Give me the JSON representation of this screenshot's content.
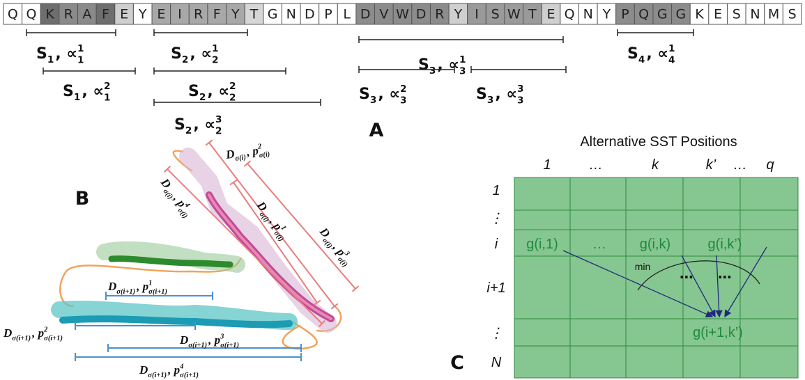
{
  "sequence": {
    "residues": [
      "Q",
      "Q",
      "K",
      "R",
      "A",
      "F",
      "E",
      "Y",
      "E",
      "I",
      "R",
      "F",
      "Y",
      "T",
      "G",
      "N",
      "D",
      "P",
      "L",
      "D",
      "V",
      "W",
      "D",
      "R",
      "Y",
      "I",
      "S",
      "W",
      "T",
      "E",
      "Q",
      "N",
      "Y",
      "P",
      "Q",
      "G",
      "G",
      "K",
      "E",
      "S",
      "N",
      "M",
      "S"
    ],
    "shades": [
      "#ffffff",
      "#ffffff",
      "#6e6e6e",
      "#8a8a8a",
      "#8a8a8a",
      "#6e6e6e",
      "#cfcfcf",
      "#ffffff",
      "#a8a8a8",
      "#a8a8a8",
      "#a8a8a8",
      "#a8a8a8",
      "#a8a8a8",
      "#d6d6d6",
      "#ffffff",
      "#ffffff",
      "#ffffff",
      "#ffffff",
      "#ffffff",
      "#8c8c8c",
      "#8c8c8c",
      "#8c8c8c",
      "#8c8c8c",
      "#8c8c8c",
      "#cfcfcf",
      "#9a9a9a",
      "#9a9a9a",
      "#9a9a9a",
      "#9a9a9a",
      "#cfcfcf",
      "#ffffff",
      "#ffffff",
      "#ffffff",
      "#8c8c8c",
      "#8c8c8c",
      "#8c8c8c",
      "#8c8c8c",
      "#ffffff",
      "#ffffff",
      "#ffffff",
      "#ffffff",
      "#ffffff",
      "#ffffff"
    ]
  },
  "panel_labels": {
    "a": "A",
    "b": "B",
    "c": "C"
  },
  "segments": [
    {
      "s": "S",
      "s_sub": "1",
      "alpha": ", ∝",
      "alpha_sup": "1",
      "alpha_sub": "1"
    },
    {
      "s": "S",
      "s_sub": "1",
      "alpha": ", ∝",
      "alpha_sup": "2",
      "alpha_sub": "1"
    },
    {
      "s": "S",
      "s_sub": "2",
      "alpha": ", ∝",
      "alpha_sup": "1",
      "alpha_sub": "2"
    },
    {
      "s": "S",
      "s_sub": "2",
      "alpha": ", ∝",
      "alpha_sup": "2",
      "alpha_sub": "2"
    },
    {
      "s": "S",
      "s_sub": "2",
      "alpha": ", ∝",
      "alpha_sup": "3",
      "alpha_sub": "2"
    },
    {
      "s": "S",
      "s_sub": "3",
      "alpha": ", ∝",
      "alpha_sup": "1",
      "alpha_sub": "3"
    },
    {
      "s": "S",
      "s_sub": "3",
      "alpha": ", ∝",
      "alpha_sup": "2",
      "alpha_sub": "3"
    },
    {
      "s": "S",
      "s_sub": "3",
      "alpha": ", ∝",
      "alpha_sup": "3",
      "alpha_sub": "3"
    },
    {
      "s": "S",
      "s_sub": "4",
      "alpha": ", ∝",
      "alpha_sup": "1",
      "alpha_sub": "4"
    }
  ],
  "distances_i": [
    {
      "d": "D",
      "d_sub": "σ(i)",
      "p": ", p",
      "p_sup": "2",
      "p_sub": "σ(i)"
    },
    {
      "d": "D",
      "d_sub": "σ(i)",
      "p": ", p",
      "p_sup": "4",
      "p_sub": "σ(i)"
    },
    {
      "d": "D",
      "d_sub": "σ(i)",
      "p": ", p",
      "p_sup": "1",
      "p_sub": "σ(i)"
    },
    {
      "d": "D",
      "d_sub": "σ(i)",
      "p": ", p",
      "p_sup": "3",
      "p_sub": "σ(i)"
    }
  ],
  "distances_i1": [
    {
      "d": "D",
      "d_sub": "σ(i+1)",
      "p": ", p",
      "p_sup": "1",
      "p_sub": "σ(i+1)"
    },
    {
      "d": "D",
      "d_sub": "σ(i+1)",
      "p": ", p",
      "p_sup": "2",
      "p_sub": "σ(i+1)"
    },
    {
      "d": "D",
      "d_sub": "σ(i+1)",
      "p": ", p",
      "p_sup": "3",
      "p_sub": "σ(i+1)"
    },
    {
      "d": "D",
      "d_sub": "σ(i+1)",
      "p": ", p",
      "p_sup": "4",
      "p_sub": "σ(i+1)"
    }
  ],
  "grid": {
    "title": "Alternative SST Positions",
    "columns": [
      "1",
      "…",
      "k",
      "k’",
      "…",
      "q"
    ],
    "rows": [
      "1",
      "⋮",
      "i",
      "i+1",
      "⋮",
      "N"
    ],
    "cells": [
      "g(i,1)",
      "…",
      "g(i,k)",
      "g(i,k’)",
      "g(i+1,k’)"
    ],
    "min": "min",
    "dots": [
      "⋯",
      "⋯"
    ]
  }
}
